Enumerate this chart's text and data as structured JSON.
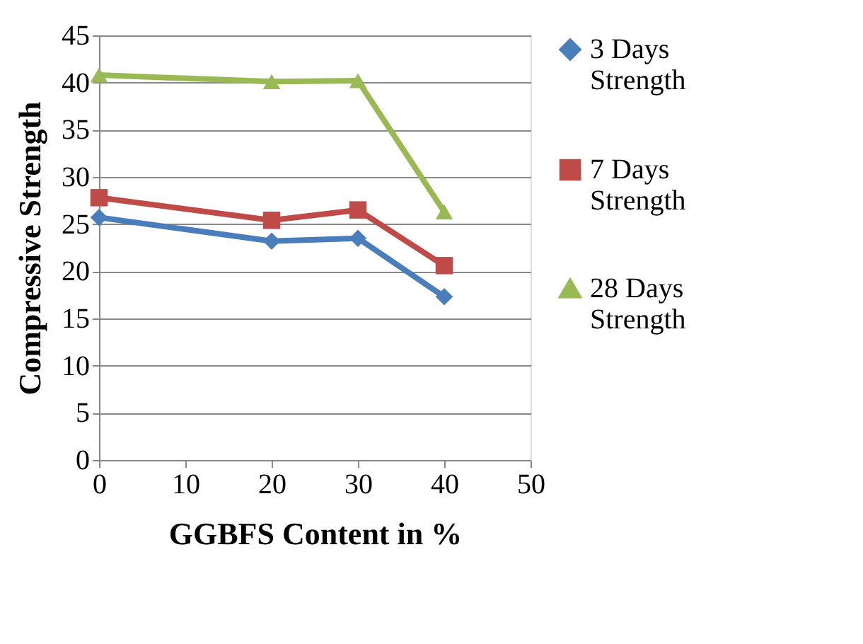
{
  "chart_data": {
    "type": "line",
    "xlabel": "GGBFS Content in %",
    "ylabel": "Compressive Strength",
    "x": [
      0,
      20,
      30,
      40
    ],
    "series": [
      {
        "name": "3 Days Strength",
        "color": "#4a7ebb",
        "marker": "diamond",
        "values": [
          25.7,
          23.2,
          23.5,
          17.3
        ]
      },
      {
        "name": "7 Days Strength",
        "color": "#be4b48",
        "marker": "square",
        "values": [
          27.8,
          25.4,
          26.5,
          20.6
        ]
      },
      {
        "name": "28 Days Strength",
        "color": "#98b954",
        "marker": "triangle",
        "values": [
          40.8,
          40.1,
          40.2,
          26.3
        ]
      }
    ],
    "xlim": [
      0,
      50
    ],
    "xticks": [
      0,
      10,
      20,
      30,
      40,
      50
    ],
    "ylim": [
      0,
      45
    ],
    "yticks": [
      0,
      5,
      10,
      15,
      20,
      25,
      30,
      35,
      40,
      45
    ],
    "grid": "y",
    "legend": "right",
    "line_style": "solid"
  }
}
